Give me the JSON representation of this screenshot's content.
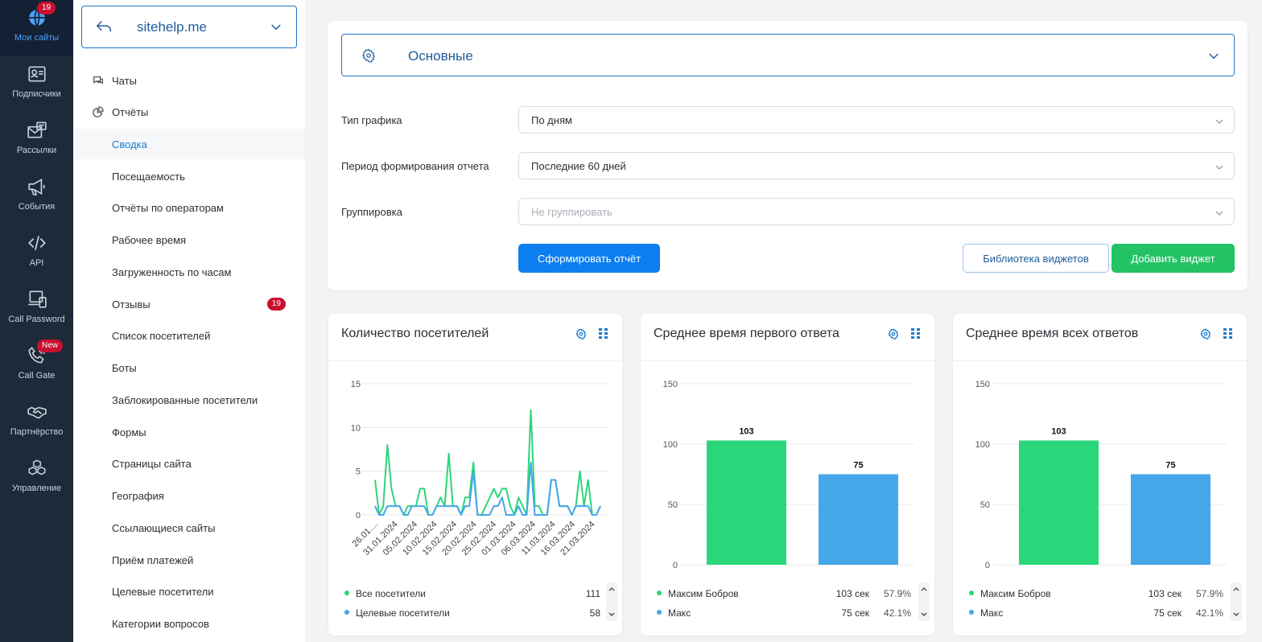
{
  "rail": {
    "items": [
      {
        "label": "Мои сайты",
        "icon": "globe-icon",
        "badge": "19",
        "active": true
      },
      {
        "label": "Подписчики",
        "icon": "contact-card-icon"
      },
      {
        "label": "Рассылки",
        "icon": "mail-icon"
      },
      {
        "label": "События",
        "icon": "megaphone-icon"
      },
      {
        "label": "API",
        "icon": "code-icon"
      },
      {
        "label": "Call Password",
        "icon": "devices-icon"
      },
      {
        "label": "Call Gate",
        "icon": "phone-icon",
        "badge": "New"
      },
      {
        "label": "Партнёрство",
        "icon": "handshake-icon"
      },
      {
        "label": "Управление",
        "icon": "cubes-icon"
      }
    ]
  },
  "sidebar": {
    "site": "sitehelp.me",
    "top_items": [
      {
        "label": "Чаты",
        "icon": "chat-icon"
      },
      {
        "label": "Отчёты",
        "icon": "pie-chart-icon"
      }
    ],
    "report_items": [
      {
        "label": "Сводка"
      },
      {
        "label": "Посещаемость"
      },
      {
        "label": "Отчёты по операторам"
      },
      {
        "label": "Рабочее время"
      },
      {
        "label": "Загруженность по часам"
      },
      {
        "label": "Отзывы",
        "badge": "19"
      },
      {
        "label": "Список посетителей"
      },
      {
        "label": "Боты"
      },
      {
        "label": "Заблокированные посетители"
      },
      {
        "label": "Формы"
      },
      {
        "label": "Страницы сайта"
      },
      {
        "label": "География"
      },
      {
        "label": "Ссылающиеся сайты"
      },
      {
        "label": "Приём платежей"
      },
      {
        "label": "Целевые посетители"
      },
      {
        "label": "Категории вопросов"
      }
    ]
  },
  "settings": {
    "accordion_title": "Основные",
    "chart_type_label": "Тип графика",
    "chart_type_value": "По дням",
    "period_label": "Период формирования отчета",
    "period_value": "Последние 60 дней",
    "grouping_label": "Группировка",
    "grouping_placeholder": "Не группировать",
    "generate_button": "Сформировать отчёт",
    "library_button": "Библиотека виджетов",
    "add_widget_button": "Добавить виджет"
  },
  "colors": {
    "green": "#2bd67b",
    "blue": "#46a7ea"
  },
  "widgets": {
    "visitors": {
      "title": "Количество посетителей",
      "legend": [
        {
          "name": "Все посетители",
          "value": "111",
          "color": "#2bd67b"
        },
        {
          "name": "Целевые посетители",
          "value": "58",
          "color": "#46a7ea"
        }
      ]
    },
    "first_response": {
      "title": "Среднее время первого ответа",
      "legend": [
        {
          "name": "Максим Бобров",
          "time": "103 сек",
          "pct": "57.9%",
          "color": "#2bd67b"
        },
        {
          "name": "Макс",
          "time": "75 сек",
          "pct": "42.1%",
          "color": "#46a7ea"
        }
      ]
    },
    "all_responses": {
      "title": "Среднее время всех ответов",
      "legend": [
        {
          "name": "Максим Бобров",
          "time": "103 сек",
          "pct": "57.9%",
          "color": "#2bd67b"
        },
        {
          "name": "Макс",
          "time": "75 сек",
          "pct": "42.1%",
          "color": "#46a7ea"
        }
      ]
    }
  },
  "chart_data": [
    {
      "type": "line",
      "title": "Количество посетителей",
      "ylim": [
        0,
        15
      ],
      "yticks": [
        "0",
        "5",
        "10",
        "15"
      ],
      "xtick_labels": [
        "26.01....",
        "31.01.2024",
        "05.02.2024",
        "10.02.2024",
        "15.02.2024",
        "20.02.2024",
        "25.02.2024",
        "01.03.2024",
        "06.03.2024",
        "11.03.2024",
        "16.03.2024",
        "21.03.2024"
      ],
      "series": [
        {
          "name": "Все посетители",
          "color": "#2bd67b",
          "values": [
            4,
            0,
            1,
            8,
            3,
            1,
            1,
            0,
            1,
            1,
            1,
            3,
            3,
            0,
            0,
            1,
            2,
            1,
            7,
            1,
            1,
            0,
            2,
            2,
            6,
            0,
            0,
            1,
            2,
            3,
            2,
            3,
            3,
            1,
            0,
            2,
            1,
            0,
            12,
            1,
            1,
            0,
            0,
            4,
            4,
            1,
            1,
            1,
            0,
            1,
            5,
            1,
            4,
            0,
            0,
            1
          ]
        },
        {
          "name": "Целевые посетители",
          "color": "#46a7ea",
          "values": [
            1,
            0,
            0,
            1,
            1,
            1,
            1,
            0,
            0,
            1,
            1,
            1,
            1,
            0,
            0,
            1,
            1,
            1,
            1,
            1,
            1,
            0,
            1,
            1,
            5,
            0,
            0,
            0,
            0,
            1,
            1,
            2,
            0,
            0,
            0,
            1,
            0,
            0,
            6,
            0,
            0,
            0,
            0,
            4,
            4,
            1,
            1,
            1,
            0,
            1,
            1,
            1,
            1,
            0,
            0,
            1
          ]
        }
      ]
    },
    {
      "type": "bar",
      "title": "Среднее время первого ответа",
      "ylim": [
        0,
        150
      ],
      "yticks": [
        "0",
        "50",
        "100",
        "150"
      ],
      "categories": [
        "Максим Бобров",
        "Макс"
      ],
      "values": [
        103,
        75
      ],
      "colors": [
        "#2bd67b",
        "#46a7ea"
      ]
    },
    {
      "type": "bar",
      "title": "Среднее время всех ответов",
      "ylim": [
        0,
        150
      ],
      "yticks": [
        "0",
        "50",
        "100",
        "150"
      ],
      "categories": [
        "Максим Бобров",
        "Макс"
      ],
      "values": [
        103,
        75
      ],
      "colors": [
        "#2bd67b",
        "#46a7ea"
      ]
    }
  ]
}
